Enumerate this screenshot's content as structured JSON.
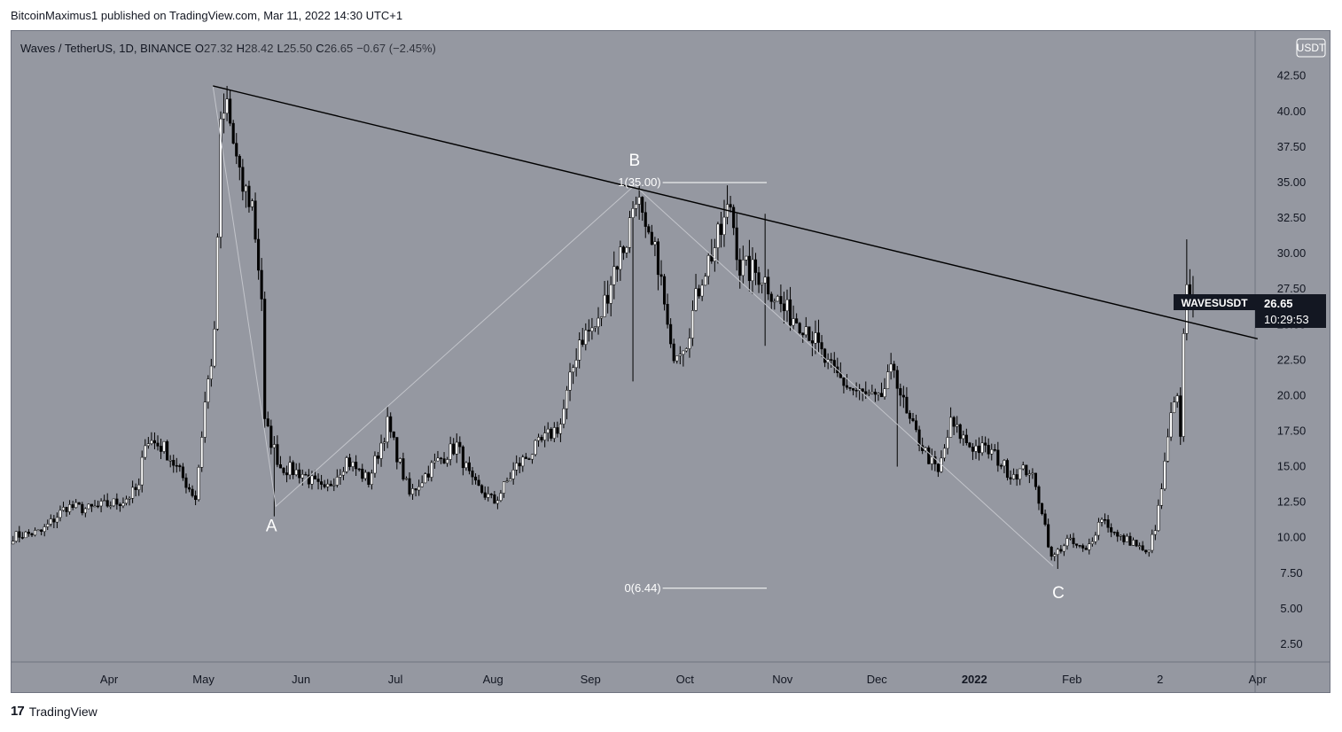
{
  "header": {
    "publisher": "BitcoinMaximus1 published on TradingView.com, Mar 11, 2022 14:30 UTC+1"
  },
  "footer": {
    "brand": "TradingView",
    "logo_icon": "tradingview-logo-icon"
  },
  "colors": {
    "background": "#9598a1",
    "bull": "#ffffff",
    "bear": "#000000",
    "trendline": "#000000",
    "wave_path": "#c3c5cb",
    "fib_line": "#ffffff",
    "badge_bg": "#131722"
  },
  "chart_data": {
    "type": "candlestick",
    "title": "Waves / TetherUS, 1D, BINANCE",
    "ohlc_label": {
      "o_label": "O",
      "o": "27.32",
      "h_label": "H",
      "h": "28.42",
      "l_label": "L",
      "l": "25.50",
      "c_label": "C",
      "c": "26.65",
      "change": "−0.67 (−2.45%)"
    },
    "currency": "USDT",
    "ylim": [
      0,
      44
    ],
    "y_ticks": [
      "2.50",
      "5.00",
      "7.50",
      "10.00",
      "12.50",
      "15.00",
      "17.50",
      "20.00",
      "22.50",
      "25.00",
      "27.50",
      "30.00",
      "32.50",
      "35.00",
      "37.50",
      "40.00",
      "42.50"
    ],
    "x_ticks": [
      {
        "label": "Apr",
        "date": "2021-04-01"
      },
      {
        "label": "May",
        "date": "2021-05-01"
      },
      {
        "label": "Jun",
        "date": "2021-06-01"
      },
      {
        "label": "Jul",
        "date": "2021-07-01"
      },
      {
        "label": "Aug",
        "date": "2021-08-01"
      },
      {
        "label": "Sep",
        "date": "2021-09-01"
      },
      {
        "label": "Oct",
        "date": "2021-10-01"
      },
      {
        "label": "Nov",
        "date": "2021-11-01"
      },
      {
        "label": "Dec",
        "date": "2021-12-01"
      },
      {
        "label": "2022",
        "date": "2022-01-01",
        "bold": true
      },
      {
        "label": "Feb",
        "date": "2022-02-01"
      },
      {
        "label": "2",
        "date": "2022-03-01"
      },
      {
        "label": "Apr",
        "date": "2022-04-01"
      }
    ],
    "close_series": [
      [
        "2021-03-01",
        10.1
      ],
      [
        "2021-03-10",
        10.4
      ],
      [
        "2021-03-18",
        12.2
      ],
      [
        "2021-03-25",
        12.0
      ],
      [
        "2021-04-05",
        12.6
      ],
      [
        "2021-04-10",
        13.5
      ],
      [
        "2021-04-12",
        17.0
      ],
      [
        "2021-04-18",
        16.3
      ],
      [
        "2021-04-24",
        14.2
      ],
      [
        "2021-04-28",
        12.8
      ],
      [
        "2021-05-01",
        19.5
      ],
      [
        "2021-05-04",
        24.0
      ],
      [
        "2021-05-06",
        38.5
      ],
      [
        "2021-05-08",
        40.5
      ],
      [
        "2021-05-12",
        35.0
      ],
      [
        "2021-05-16",
        33.5
      ],
      [
        "2021-05-19",
        27.0
      ],
      [
        "2021-05-20",
        18.0
      ],
      [
        "2021-05-25",
        15.0
      ],
      [
        "2021-06-01",
        14.5
      ],
      [
        "2021-06-08",
        13.2
      ],
      [
        "2021-06-15",
        15.5
      ],
      [
        "2021-06-22",
        14.0
      ],
      [
        "2021-06-28",
        18.0
      ],
      [
        "2021-07-05",
        13.0
      ],
      [
        "2021-07-12",
        15.0
      ],
      [
        "2021-07-20",
        16.5
      ],
      [
        "2021-07-25",
        13.8
      ],
      [
        "2021-08-01",
        12.5
      ],
      [
        "2021-08-08",
        15.0
      ],
      [
        "2021-08-15",
        16.5
      ],
      [
        "2021-08-22",
        18.0
      ],
      [
        "2021-08-28",
        24.0
      ],
      [
        "2021-09-03",
        25.0
      ],
      [
        "2021-09-08",
        29.0
      ],
      [
        "2021-09-12",
        31.0
      ],
      [
        "2021-09-15",
        34.5
      ],
      [
        "2021-09-18",
        31.0
      ],
      [
        "2021-09-22",
        29.5
      ],
      [
        "2021-09-26",
        23.0
      ],
      [
        "2021-10-01",
        24.0
      ],
      [
        "2021-10-06",
        28.5
      ],
      [
        "2021-10-12",
        31.5
      ],
      [
        "2021-10-15",
        33.5
      ],
      [
        "2021-10-18",
        29.0
      ],
      [
        "2021-10-25",
        28.5
      ],
      [
        "2021-11-01",
        26.0
      ],
      [
        "2021-11-08",
        25.0
      ],
      [
        "2021-11-15",
        22.0
      ],
      [
        "2021-11-22",
        20.5
      ],
      [
        "2021-12-01",
        19.5
      ],
      [
        "2021-12-06",
        22.0
      ],
      [
        "2021-12-10",
        18.5
      ],
      [
        "2021-12-16",
        16.0
      ],
      [
        "2021-12-20",
        14.5
      ],
      [
        "2021-12-24",
        18.0
      ],
      [
        "2021-12-30",
        16.5
      ],
      [
        "2022-01-06",
        16.0
      ],
      [
        "2022-01-12",
        14.5
      ],
      [
        "2022-01-18",
        14.8
      ],
      [
        "2022-01-22",
        12.0
      ],
      [
        "2022-01-25",
        8.5
      ],
      [
        "2022-01-30",
        9.8
      ],
      [
        "2022-02-05",
        9.0
      ],
      [
        "2022-02-10",
        11.5
      ],
      [
        "2022-02-15",
        10.0
      ],
      [
        "2022-02-20",
        9.7
      ],
      [
        "2022-02-24",
        8.8
      ],
      [
        "2022-02-27",
        10.5
      ],
      [
        "2022-03-02",
        15.0
      ],
      [
        "2022-03-04",
        18.5
      ],
      [
        "2022-03-06",
        19.5
      ],
      [
        "2022-03-07",
        17.5
      ],
      [
        "2022-03-08",
        24.0
      ],
      [
        "2022-03-09",
        28.5
      ],
      [
        "2022-03-11",
        26.65
      ]
    ],
    "low_wicks": [
      [
        "2021-05-23",
        11.5
      ],
      [
        "2021-09-14",
        21.0
      ],
      [
        "2021-10-26",
        23.5
      ],
      [
        "2021-12-07",
        15.0
      ],
      [
        "2022-01-27",
        7.8
      ]
    ],
    "high_wicks": [
      [
        "2021-05-08",
        41.8
      ],
      [
        "2021-09-16",
        34.8
      ],
      [
        "2021-10-14",
        34.8
      ],
      [
        "2021-10-26",
        32.8
      ],
      [
        "2022-03-09",
        31.0
      ]
    ],
    "trendline": {
      "start": [
        "2021-05-04",
        41.8
      ],
      "end": [
        "2022-04-01",
        24.0
      ]
    },
    "waves": [
      {
        "label": "A",
        "date": "2021-05-24",
        "value": 12.2
      },
      {
        "label": "B",
        "date": "2021-09-15",
        "value": 34.8
      },
      {
        "label": "C",
        "date": "2022-01-26",
        "value": 8.0
      }
    ],
    "fibonacci": [
      {
        "label": "1(35.00)",
        "value": 35.0,
        "from": "2021-09-20",
        "to": "2021-10-27"
      },
      {
        "label": "0(6.44)",
        "value": 6.44,
        "from": "2021-09-20",
        "to": "2021-10-27"
      }
    ],
    "price_badge": {
      "symbol": "WAVESUSDT",
      "price": "26.65",
      "countdown": "10:29:53",
      "value": 26.65
    }
  }
}
